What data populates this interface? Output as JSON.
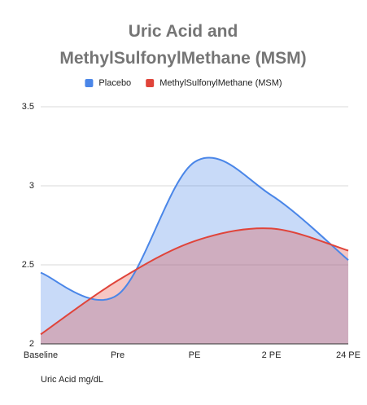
{
  "chart_data": {
    "type": "area",
    "title": "Uric Acid and MethylSulfonylMethane (MSM)",
    "x_label": "Uric Acid mg/dL",
    "categories": [
      "Baseline",
      "Pre",
      "PE",
      "2 PE",
      "24 PE"
    ],
    "series": [
      {
        "name": "Placebo",
        "color": "#4a86e8",
        "values": [
          2.45,
          2.31,
          3.15,
          2.94,
          2.53
        ]
      },
      {
        "name": "MethylSulfonylMethane (MSM)",
        "color": "#e0443a",
        "values": [
          2.06,
          2.4,
          2.65,
          2.73,
          2.59
        ]
      }
    ],
    "ylim": [
      2,
      3.5
    ],
    "yticks": [
      2,
      2.5,
      3,
      3.5
    ],
    "grid": true,
    "smooth": true,
    "legend": "top"
  }
}
